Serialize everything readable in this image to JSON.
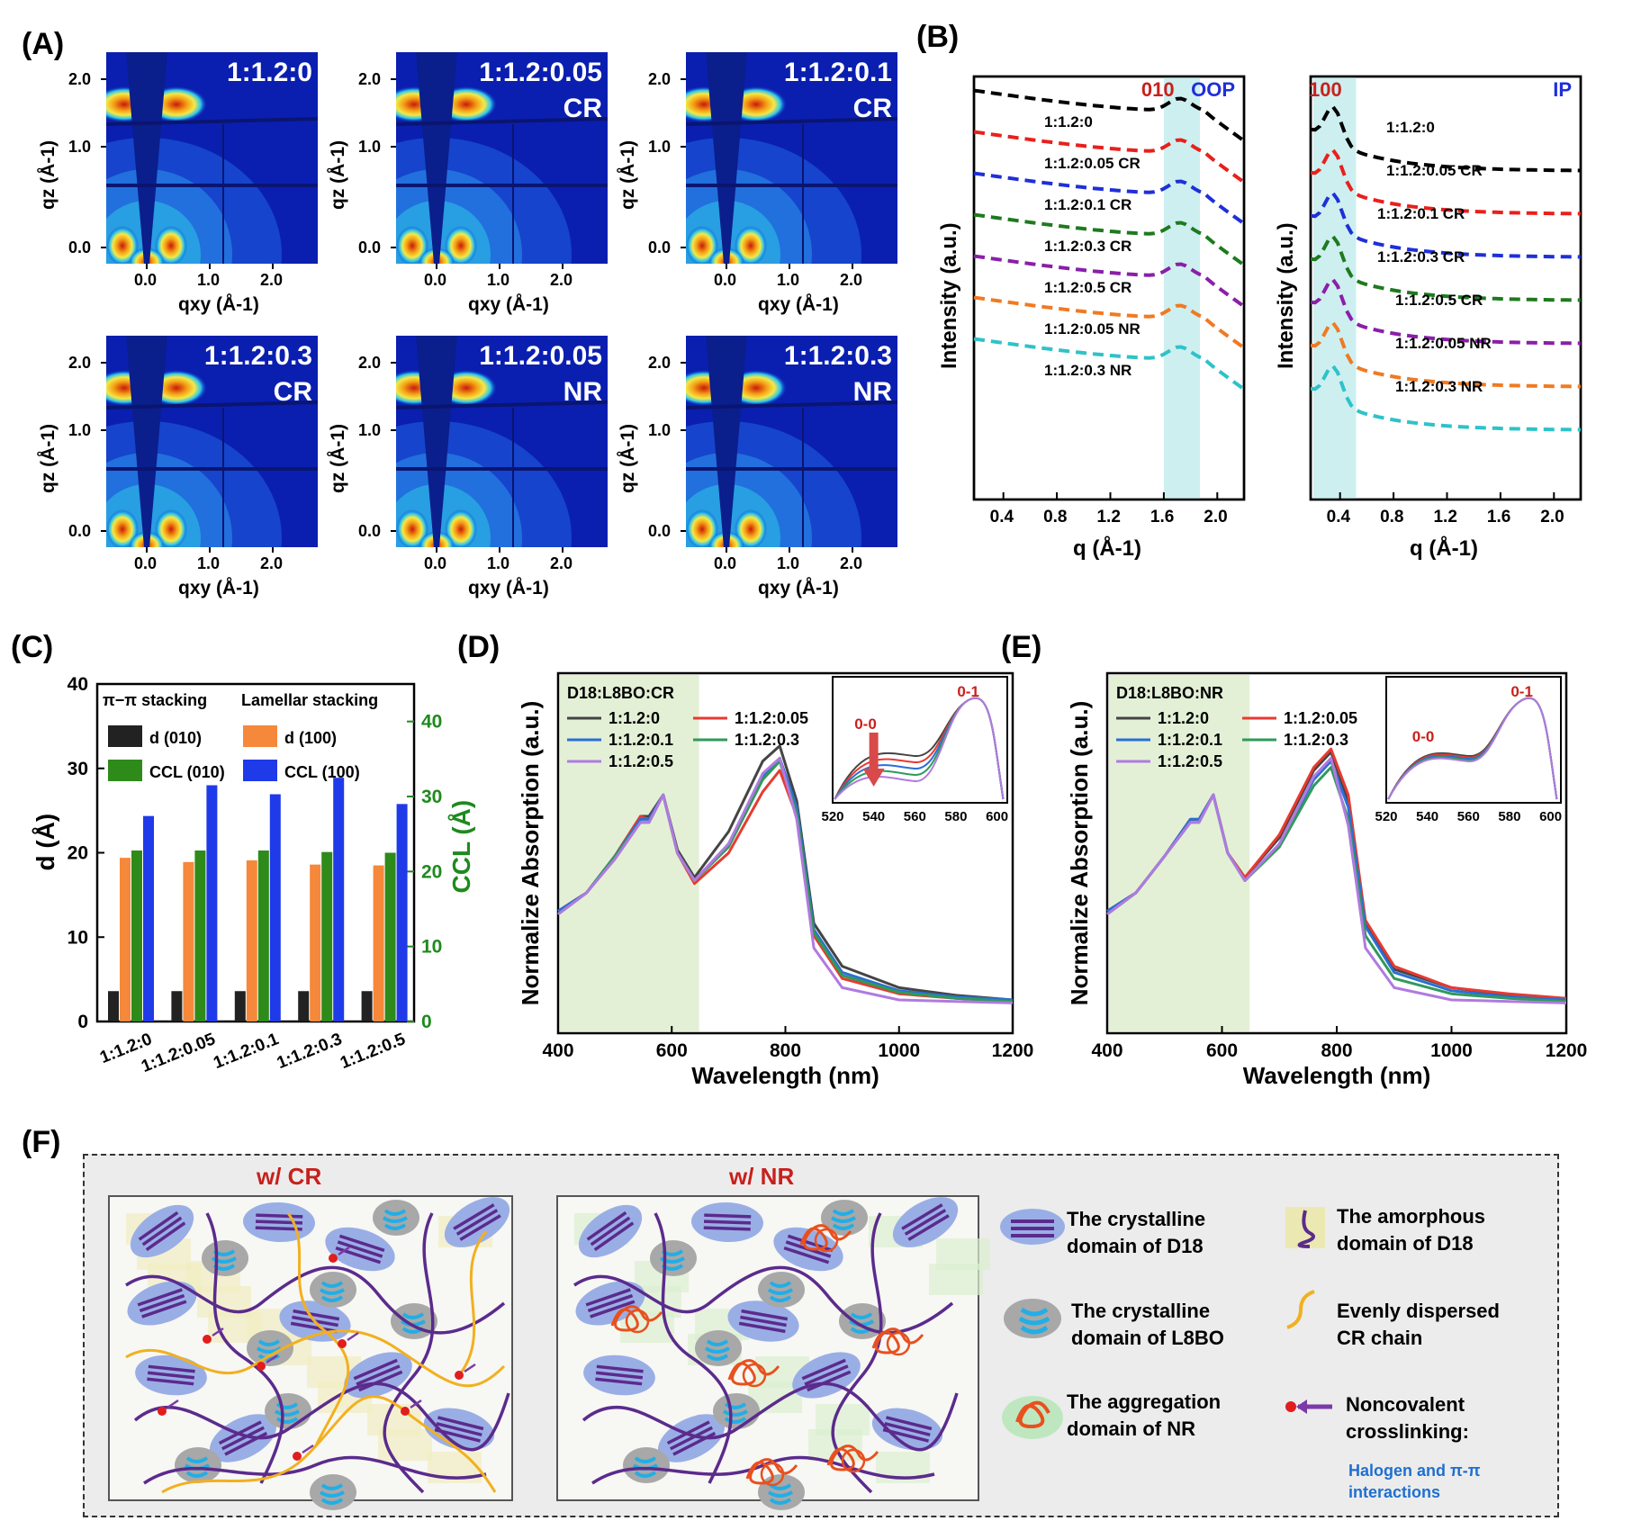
{
  "panels": {
    "A": "(A)",
    "B": "(B)",
    "C": "(C)",
    "D": "(D)",
    "E": "(E)",
    "F": "(F)"
  },
  "giwaxs": {
    "maps": [
      {
        "line1": "1:1.2:0",
        "line2": ""
      },
      {
        "line1": "1:1.2:0.05",
        "line2": "CR"
      },
      {
        "line1": "1:1.2:0.1",
        "line2": "CR"
      },
      {
        "line1": "1:1.2:0.3",
        "line2": "CR"
      },
      {
        "line1": "1:1.2:0.05",
        "line2": "NR"
      },
      {
        "line1": "1:1.2:0.3",
        "line2": "NR"
      }
    ],
    "yticks": [
      "2.0",
      "1.0",
      "0.0"
    ],
    "xticks": [
      "0.0",
      "1.0",
      "2.0"
    ],
    "ylabel": "qz (Å-1)",
    "xlabel": "qxy (Å-1)"
  },
  "profiles": {
    "ylabel": "Intensity (a.u.)",
    "xlabel": "q (Å-1)",
    "xticks": [
      "0.4",
      "0.8",
      "1.2",
      "1.6",
      "2.0"
    ],
    "oop": {
      "peak": "010",
      "tag": "OOP"
    },
    "ip": {
      "peak": "100",
      "tag": "IP"
    },
    "series": [
      "1:1.2:0",
      "1:1.2:0.05 CR",
      "1:1.2:0.1 CR",
      "1:1.2:0.3 CR",
      "1:1.2:0.5 CR",
      "1:1.2:0.05 NR",
      "1:1.2:0.3 NR"
    ],
    "colors": [
      "#000000",
      "#e8201c",
      "#1f2fd8",
      "#1e7a1e",
      "#8a1fa8",
      "#f07a22",
      "#2ec2c9"
    ]
  },
  "chart_data": [
    {
      "type": "bar",
      "title": "",
      "xlabel": "",
      "ylabel": "d (Å)",
      "y2label": "CCL (Å)",
      "ylim": [
        0,
        40
      ],
      "y2lim": [
        0,
        45
      ],
      "categories": [
        "1:1.2:0",
        "1:1.2:0.05",
        "1:1.2:0.1",
        "1:1.2:0.3",
        "1:1.2:0.5"
      ],
      "yticks": [
        "0",
        "10",
        "20",
        "30",
        "40"
      ],
      "y2ticks": [
        "0",
        "10",
        "20",
        "30",
        "40"
      ],
      "legend_titles": [
        "π−π stacking",
        "Lamellar stacking"
      ],
      "series": [
        {
          "name": "d (010)",
          "axis": "left",
          "color": "#222222",
          "values": [
            3.6,
            3.6,
            3.6,
            3.6,
            3.6
          ]
        },
        {
          "name": "d (100)",
          "axis": "left",
          "color": "#f5883a",
          "values": [
            19.4,
            18.9,
            19.1,
            18.6,
            18.5
          ]
        },
        {
          "name": "CCL (010)",
          "axis": "right",
          "color": "#2e8b1a",
          "values": [
            22.8,
            22.8,
            22.8,
            22.6,
            22.5
          ]
        },
        {
          "name": "CCL (100)",
          "axis": "right",
          "color": "#1f3ae8",
          "values": [
            27.4,
            31.5,
            30.3,
            32.5,
            29.0
          ]
        }
      ]
    },
    {
      "type": "line",
      "title": "D18:L8BO:CR",
      "xlabel": "Wavelength (nm)",
      "ylabel": "Normalize Absorption (a.u.)",
      "xlim": [
        400,
        1200
      ],
      "xticks": [
        "400",
        "600",
        "800",
        "1000",
        "1200"
      ],
      "series": [
        {
          "name": "1:1.2:0",
          "color": "#444444",
          "x": [
            400,
            450,
            500,
            545,
            560,
            585,
            610,
            640,
            700,
            760,
            790,
            820,
            850,
            900,
            1000,
            1100,
            1200
          ],
          "y": [
            0.34,
            0.4,
            0.52,
            0.65,
            0.65,
            0.72,
            0.54,
            0.45,
            0.6,
            0.83,
            0.88,
            0.7,
            0.3,
            0.16,
            0.09,
            0.065,
            0.05
          ]
        },
        {
          "name": "1:1.2:0.05",
          "color": "#e83a30",
          "x": [
            400,
            450,
            500,
            545,
            560,
            585,
            610,
            640,
            700,
            760,
            790,
            820,
            850,
            900,
            1000,
            1100,
            1200
          ],
          "y": [
            0.34,
            0.4,
            0.52,
            0.65,
            0.64,
            0.72,
            0.53,
            0.43,
            0.53,
            0.73,
            0.8,
            0.65,
            0.26,
            0.12,
            0.07,
            0.055,
            0.045
          ]
        },
        {
          "name": "1:1.2:0.1",
          "color": "#2a6fd6",
          "x": [
            400,
            450,
            500,
            545,
            560,
            585,
            610,
            640,
            700,
            760,
            790,
            820,
            850,
            900,
            1000,
            1100,
            1200
          ],
          "y": [
            0.34,
            0.4,
            0.52,
            0.64,
            0.64,
            0.72,
            0.53,
            0.44,
            0.56,
            0.78,
            0.84,
            0.68,
            0.28,
            0.14,
            0.08,
            0.06,
            0.05
          ]
        },
        {
          "name": "1:1.2:0.3",
          "color": "#2f9a5a",
          "x": [
            400,
            450,
            500,
            545,
            560,
            585,
            610,
            640,
            700,
            760,
            790,
            820,
            850,
            900,
            1000,
            1100,
            1200
          ],
          "y": [
            0.33,
            0.4,
            0.52,
            0.63,
            0.63,
            0.72,
            0.53,
            0.44,
            0.55,
            0.77,
            0.83,
            0.66,
            0.27,
            0.13,
            0.075,
            0.055,
            0.045
          ]
        },
        {
          "name": "1:1.2:0.5",
          "color": "#b07ae0",
          "x": [
            400,
            450,
            500,
            545,
            560,
            585,
            610,
            640,
            700,
            760,
            790,
            820,
            850,
            900,
            1000,
            1100,
            1200
          ],
          "y": [
            0.33,
            0.4,
            0.51,
            0.63,
            0.63,
            0.72,
            0.53,
            0.44,
            0.56,
            0.79,
            0.84,
            0.64,
            0.22,
            0.09,
            0.05,
            0.045,
            0.04
          ]
        }
      ],
      "inset": {
        "xlim": [
          520,
          605
        ],
        "xticks": [
          "520",
          "540",
          "560",
          "580",
          "600"
        ],
        "labels": [
          "0-0",
          "0-1"
        ]
      }
    },
    {
      "type": "line",
      "title": "D18:L8BO:NR",
      "xlabel": "Wavelength (nm)",
      "ylabel": "Normalize Absorption (a.u.)",
      "xlim": [
        400,
        1200
      ],
      "xticks": [
        "400",
        "600",
        "800",
        "1000",
        "1200"
      ],
      "series": [
        {
          "name": "1:1.2:0",
          "color": "#444444",
          "x": [
            400,
            450,
            500,
            545,
            560,
            585,
            610,
            640,
            700,
            760,
            790,
            820,
            850,
            900,
            1000,
            1100,
            1200
          ],
          "y": [
            0.34,
            0.4,
            0.52,
            0.64,
            0.64,
            0.72,
            0.53,
            0.45,
            0.58,
            0.8,
            0.86,
            0.7,
            0.3,
            0.15,
            0.09,
            0.065,
            0.05
          ]
        },
        {
          "name": "1:1.2:0.05",
          "color": "#e83a30",
          "x": [
            400,
            450,
            500,
            545,
            560,
            585,
            610,
            640,
            700,
            760,
            790,
            820,
            850,
            900,
            1000,
            1100,
            1200
          ],
          "y": [
            0.34,
            0.4,
            0.52,
            0.64,
            0.64,
            0.72,
            0.53,
            0.45,
            0.59,
            0.81,
            0.87,
            0.72,
            0.31,
            0.16,
            0.09,
            0.07,
            0.055
          ]
        },
        {
          "name": "1:1.2:0.1",
          "color": "#2a6fd6",
          "x": [
            400,
            450,
            500,
            545,
            560,
            585,
            610,
            640,
            700,
            760,
            790,
            820,
            850,
            900,
            1000,
            1100,
            1200
          ],
          "y": [
            0.34,
            0.4,
            0.52,
            0.64,
            0.64,
            0.72,
            0.53,
            0.44,
            0.56,
            0.77,
            0.83,
            0.68,
            0.29,
            0.14,
            0.08,
            0.06,
            0.05
          ]
        },
        {
          "name": "1:1.2:0.3",
          "color": "#2f9a5a",
          "x": [
            400,
            450,
            500,
            545,
            560,
            585,
            610,
            640,
            700,
            760,
            790,
            820,
            850,
            900,
            1000,
            1100,
            1200
          ],
          "y": [
            0.33,
            0.4,
            0.52,
            0.63,
            0.63,
            0.72,
            0.53,
            0.44,
            0.55,
            0.75,
            0.81,
            0.64,
            0.26,
            0.12,
            0.07,
            0.055,
            0.045
          ]
        },
        {
          "name": "1:1.2:0.5",
          "color": "#b07ae0",
          "x": [
            400,
            450,
            500,
            545,
            560,
            585,
            610,
            640,
            700,
            760,
            790,
            820,
            850,
            900,
            1000,
            1100,
            1200
          ],
          "y": [
            0.33,
            0.4,
            0.52,
            0.63,
            0.63,
            0.72,
            0.53,
            0.44,
            0.56,
            0.78,
            0.84,
            0.62,
            0.22,
            0.09,
            0.05,
            0.045,
            0.04
          ]
        }
      ],
      "inset": {
        "xlim": [
          520,
          605
        ],
        "xticks": [
          "520",
          "540",
          "560",
          "580",
          "600"
        ],
        "labels": [
          "0-0",
          "0-1"
        ]
      }
    }
  ],
  "schematic": {
    "cr_title": "w/ CR",
    "nr_title": "w/ NR",
    "legend": [
      {
        "text1": "The crystalline",
        "text2": "domain of D18"
      },
      {
        "text1": "The amorphous",
        "text2": "domain of D18"
      },
      {
        "text1": "The crystalline",
        "text2": "domain of L8BO"
      },
      {
        "text1": "Evenly dispersed",
        "text2": "CR chain"
      },
      {
        "text1": "The aggregation",
        "text2": "domain of NR"
      },
      {
        "text1": "Noncovalent",
        "text2": "crosslinking:"
      }
    ],
    "note_line1": "Halogen and π-π",
    "note_line2": "interactions",
    "colors": {
      "d18": "#5b2b8c",
      "cr_chain": "#f2b01e",
      "nr_chain": "#e8501e",
      "l8bo": "#22aee6",
      "link": "#e01e1e"
    }
  }
}
